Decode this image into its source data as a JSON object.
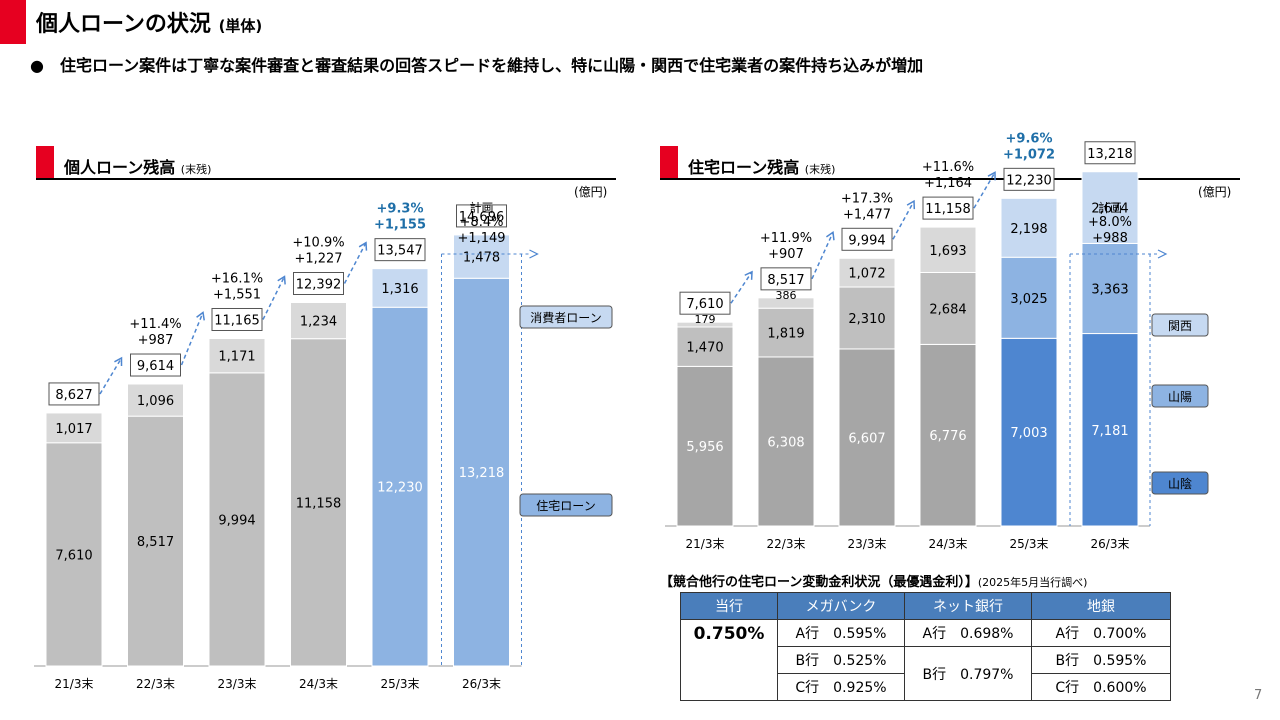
{
  "header": {
    "title": "個人ローンの状況",
    "title_sub": "(単体)",
    "bullet": "●　住宅ローン案件は丁寧な案件審査と審査結果の回答スピードを維持し、特に山陽・関西で住宅業者の案件持ち込みが増加"
  },
  "left_section": {
    "title": "個人ローン残高",
    "sub": "(末残)",
    "unit": "(億円)"
  },
  "right_section": {
    "title": "住宅ローン残高",
    "sub": "(末残)",
    "unit": "(億円)"
  },
  "colors": {
    "accent_red": "#e60020",
    "gray_dark": "#a6a6a6",
    "gray_mid": "#bfbfbf",
    "gray_light": "#d9d9d9",
    "blue_dark": "#4e86d0",
    "blue_mid": "#8db3e2",
    "blue_light": "#c6d9f1",
    "growth_blue": "#1f6fa8",
    "table_header": "#4a7ebb"
  },
  "chart_data": [
    {
      "type": "bar",
      "stacked": true,
      "categories": [
        "21/3末",
        "22/3末",
        "23/3末",
        "24/3末",
        "25/3末",
        "26/3末"
      ],
      "series": [
        {
          "name": "住宅ローン",
          "values": [
            7610,
            8517,
            9994,
            11158,
            12230,
            13218
          ]
        },
        {
          "name": "消費者ローン",
          "values": [
            1017,
            1096,
            1171,
            1234,
            1316,
            1478
          ]
        }
      ],
      "totals": [
        "8,627",
        "9,614",
        "11,165",
        "12,392",
        "13,547",
        "14,696"
      ],
      "labels": [
        [
          "7,610",
          "1,017"
        ],
        [
          "8,517",
          "1,096"
        ],
        [
          "9,994",
          "1,171"
        ],
        [
          "11,158",
          "1,234"
        ],
        [
          "12,230",
          "1,316"
        ],
        [
          "13,218",
          "1,478"
        ]
      ],
      "growth": [
        {
          "index": 1,
          "pct": "+11.4%",
          "abs": "+987"
        },
        {
          "index": 2,
          "pct": "+16.1%",
          "abs": "+1,551"
        },
        {
          "index": 3,
          "pct": "+10.9%",
          "abs": "+1,227"
        },
        {
          "index": 4,
          "pct": "+9.3%",
          "abs": "+1,155",
          "highlight": true
        },
        {
          "index": 5,
          "pct": "+8.4%",
          "abs": "+1,149",
          "note": "計画"
        }
      ],
      "legend": [
        "消費者ローン",
        "住宅ローン"
      ],
      "ylim": [
        0,
        16500
      ]
    },
    {
      "type": "bar",
      "stacked": true,
      "categories": [
        "21/3末",
        "22/3末",
        "23/3末",
        "24/3末",
        "25/3末",
        "26/3末"
      ],
      "series": [
        {
          "name": "山陰",
          "values": [
            5956,
            6308,
            6607,
            6776,
            7003,
            7181
          ]
        },
        {
          "name": "山陽",
          "values": [
            1470,
            1819,
            2310,
            2684,
            3025,
            3363
          ]
        },
        {
          "name": "関西",
          "values": [
            179,
            386,
            1072,
            1693,
            2198,
            2674
          ]
        }
      ],
      "totals": [
        "7,610",
        "8,517",
        "9,994",
        "11,158",
        "12,230",
        "13,218"
      ],
      "labels": [
        [
          "5,956",
          "1,470",
          "179"
        ],
        [
          "6,308",
          "1,819",
          "386"
        ],
        [
          "6,607",
          "2,310",
          "1,072"
        ],
        [
          "6,776",
          "2,684",
          "1,693"
        ],
        [
          "7,003",
          "3,025",
          "2,198"
        ],
        [
          "7,181",
          "3,363",
          "2,674"
        ]
      ],
      "growth": [
        {
          "index": 1,
          "pct": "+11.9%",
          "abs": "+907"
        },
        {
          "index": 2,
          "pct": "+17.3%",
          "abs": "+1,477"
        },
        {
          "index": 3,
          "pct": "+11.6%",
          "abs": "+1,164"
        },
        {
          "index": 4,
          "pct": "+9.6%",
          "abs": "+1,072",
          "highlight": true
        },
        {
          "index": 5,
          "pct": "+8.0%",
          "abs": "+988",
          "note": "計画"
        }
      ],
      "legend": [
        "関西",
        "山陽",
        "山陰"
      ],
      "ylim": [
        0,
        15000
      ]
    }
  ],
  "rate_table": {
    "title": "【競合他行の住宅ローン変動金利状況（最優遇金利）】",
    "title_sub": "(2025年5月当行調べ)",
    "headers": [
      "当行",
      "メガバンク",
      "ネット銀行",
      "地銀"
    ],
    "own_rate": "0.750%",
    "mega": [
      "A行　0.595%",
      "B行　0.525%",
      "C行　0.925%"
    ],
    "net": [
      "A行　0.698%",
      "B行　0.797%"
    ],
    "regional": [
      "A行　0.700%",
      "B行　0.595%",
      "C行　0.600%"
    ]
  },
  "page_number": "7"
}
